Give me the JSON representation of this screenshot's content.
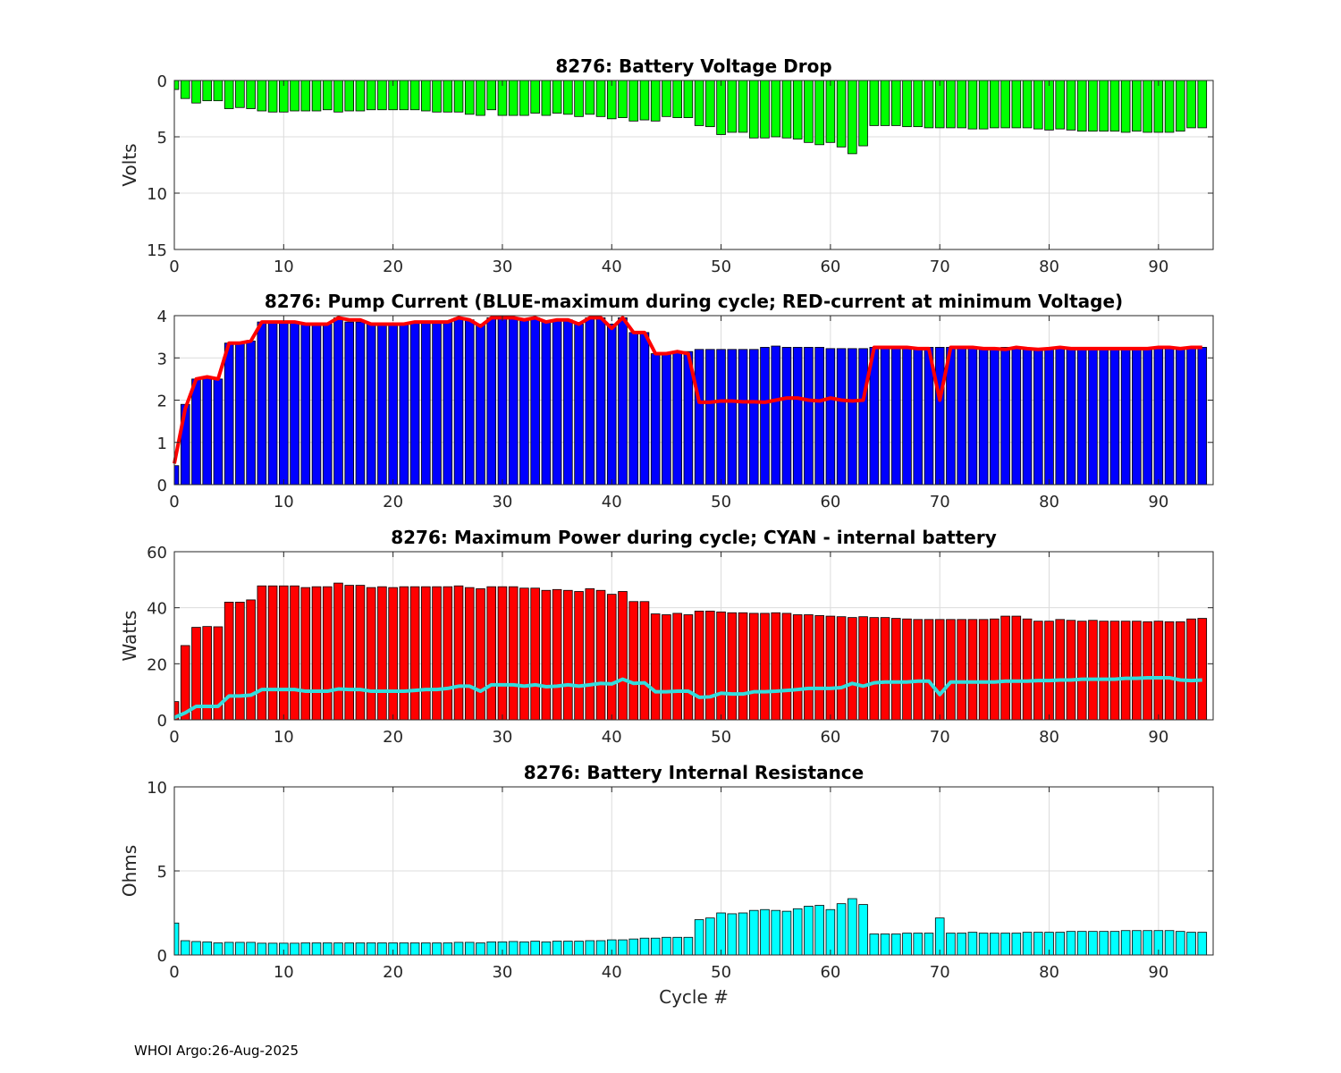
{
  "footer": "WHOI Argo:26-Aug-2025",
  "xlabel": "Cycle #",
  "colors": {
    "voltage_bar": "#00ff00",
    "current_bar": "#0000ff",
    "current_line": "#ff0000",
    "power_bar": "#ff0000",
    "power_line": "#33dddd",
    "resistance_bar": "#00ffff",
    "grid": "#dcdcdc"
  },
  "chart_data": [
    {
      "type": "bar",
      "title": "8276: Battery Voltage Drop",
      "ylabel": "Volts",
      "xlabel": "",
      "xlim": [
        0,
        95
      ],
      "ylim": [
        0,
        15
      ],
      "y_reversed": true,
      "grid": true,
      "xticks": [
        0,
        10,
        20,
        30,
        40,
        50,
        60,
        70,
        80,
        90
      ],
      "yticks": [
        0,
        5,
        10,
        15
      ],
      "x": [
        0,
        1,
        2,
        3,
        4,
        5,
        6,
        7,
        8,
        9,
        10,
        11,
        12,
        13,
        14,
        15,
        16,
        17,
        18,
        19,
        20,
        21,
        22,
        23,
        24,
        25,
        26,
        27,
        28,
        29,
        30,
        31,
        32,
        33,
        34,
        35,
        36,
        37,
        38,
        39,
        40,
        41,
        42,
        43,
        44,
        45,
        46,
        47,
        48,
        49,
        50,
        51,
        52,
        53,
        54,
        55,
        56,
        57,
        58,
        59,
        60,
        61,
        62,
        63,
        64,
        65,
        66,
        67,
        68,
        69,
        70,
        71,
        72,
        73,
        74,
        75,
        76,
        77,
        78,
        79,
        80,
        81,
        82,
        83,
        84,
        85,
        86,
        87,
        88,
        89,
        90,
        91,
        92,
        93,
        94
      ],
      "series": [
        {
          "values": [
            0.8,
            1.6,
            2.0,
            1.8,
            1.8,
            2.5,
            2.4,
            2.5,
            2.7,
            2.8,
            2.8,
            2.7,
            2.7,
            2.7,
            2.6,
            2.8,
            2.7,
            2.7,
            2.6,
            2.6,
            2.6,
            2.6,
            2.6,
            2.7,
            2.8,
            2.8,
            2.8,
            3.0,
            3.1,
            2.6,
            3.1,
            3.1,
            3.1,
            2.9,
            3.1,
            2.9,
            3.0,
            3.2,
            3.0,
            3.2,
            3.4,
            3.3,
            3.6,
            3.5,
            3.6,
            3.2,
            3.3,
            3.3,
            4.0,
            4.1,
            4.8,
            4.6,
            4.6,
            5.1,
            5.1,
            5.0,
            5.1,
            5.2,
            5.5,
            5.7,
            5.5,
            5.9,
            6.5,
            5.8,
            4.0,
            4.0,
            4.0,
            4.1,
            4.1,
            4.2,
            4.2,
            4.2,
            4.2,
            4.3,
            4.3,
            4.2,
            4.2,
            4.2,
            4.2,
            4.3,
            4.4,
            4.3,
            4.4,
            4.5,
            4.5,
            4.5,
            4.5,
            4.6,
            4.5,
            4.6,
            4.6,
            4.6,
            4.5,
            4.2,
            4.2
          ]
        }
      ]
    },
    {
      "type": "bar",
      "title": "8276: Pump Current (BLUE-maximum during cycle; RED-current at minimum Voltage)",
      "ylabel": "",
      "xlabel": "",
      "xlim": [
        0,
        95
      ],
      "ylim": [
        0,
        4
      ],
      "grid": true,
      "xticks": [
        0,
        10,
        20,
        30,
        40,
        50,
        60,
        70,
        80,
        90
      ],
      "yticks": [
        0,
        1,
        2,
        3,
        4
      ],
      "x": [
        0,
        1,
        2,
        3,
        4,
        5,
        6,
        7,
        8,
        9,
        10,
        11,
        12,
        13,
        14,
        15,
        16,
        17,
        18,
        19,
        20,
        21,
        22,
        23,
        24,
        25,
        26,
        27,
        28,
        29,
        30,
        31,
        32,
        33,
        34,
        35,
        36,
        37,
        38,
        39,
        40,
        41,
        42,
        43,
        44,
        45,
        46,
        47,
        48,
        49,
        50,
        51,
        52,
        53,
        54,
        55,
        56,
        57,
        58,
        59,
        60,
        61,
        62,
        63,
        64,
        65,
        66,
        67,
        68,
        69,
        70,
        71,
        72,
        73,
        74,
        75,
        76,
        77,
        78,
        79,
        80,
        81,
        82,
        83,
        84,
        85,
        86,
        87,
        88,
        89,
        90,
        91,
        92,
        93,
        94
      ],
      "series": [
        {
          "values": [
            0.45,
            1.9,
            2.5,
            2.55,
            2.5,
            3.35,
            3.35,
            3.4,
            3.85,
            3.85,
            3.85,
            3.85,
            3.8,
            3.8,
            3.8,
            3.95,
            3.85,
            3.85,
            3.8,
            3.8,
            3.8,
            3.8,
            3.85,
            3.85,
            3.85,
            3.85,
            3.95,
            3.9,
            3.8,
            3.95,
            3.95,
            3.95,
            3.9,
            3.95,
            3.85,
            3.9,
            3.9,
            3.8,
            3.95,
            3.95,
            3.8,
            3.95,
            3.6,
            3.6,
            3.1,
            3.1,
            3.15,
            3.15,
            3.2,
            3.2,
            3.2,
            3.2,
            3.2,
            3.2,
            3.25,
            3.28,
            3.25,
            3.25,
            3.25,
            3.25,
            3.22,
            3.22,
            3.22,
            3.22,
            3.25,
            3.25,
            3.25,
            3.25,
            3.25,
            3.25,
            3.25,
            3.25,
            3.25,
            3.22,
            3.22,
            3.22,
            3.25,
            3.22,
            3.2,
            3.2,
            3.22,
            3.22,
            3.22,
            3.22,
            3.22,
            3.22,
            3.22,
            3.22,
            3.22,
            3.22,
            3.25,
            3.22,
            3.22,
            3.25,
            3.25
          ]
        },
        {
          "values": [
            0.5,
            1.8,
            2.5,
            2.55,
            2.5,
            3.35,
            3.35,
            3.4,
            3.85,
            3.85,
            3.85,
            3.85,
            3.8,
            3.8,
            3.8,
            3.95,
            3.9,
            3.9,
            3.8,
            3.8,
            3.8,
            3.8,
            3.85,
            3.85,
            3.85,
            3.85,
            3.95,
            3.9,
            3.75,
            3.95,
            3.95,
            3.95,
            3.9,
            3.95,
            3.85,
            3.9,
            3.9,
            3.8,
            3.95,
            3.95,
            3.7,
            3.95,
            3.6,
            3.6,
            3.1,
            3.1,
            3.15,
            3.1,
            1.95,
            1.95,
            1.98,
            1.98,
            1.96,
            1.96,
            1.95,
            2.0,
            2.05,
            2.05,
            2.0,
            1.98,
            2.05,
            2.0,
            1.98,
            2.0,
            3.25,
            3.25,
            3.25,
            3.25,
            3.22,
            3.22,
            2.0,
            3.25,
            3.25,
            3.25,
            3.22,
            3.22,
            3.2,
            3.25,
            3.22,
            3.2,
            3.22,
            3.25,
            3.22,
            3.22,
            3.22,
            3.22,
            3.22,
            3.22,
            3.22,
            3.22,
            3.25,
            3.25,
            3.22,
            3.25,
            3.25
          ]
        }
      ]
    },
    {
      "type": "bar",
      "title": "8276: Maximum Power during cycle; CYAN - internal battery",
      "ylabel": "Watts",
      "xlabel": "",
      "xlim": [
        0,
        95
      ],
      "ylim": [
        0,
        60
      ],
      "grid": true,
      "xticks": [
        0,
        10,
        20,
        30,
        40,
        50,
        60,
        70,
        80,
        90
      ],
      "yticks": [
        0,
        20,
        40,
        60
      ],
      "x": [
        0,
        1,
        2,
        3,
        4,
        5,
        6,
        7,
        8,
        9,
        10,
        11,
        12,
        13,
        14,
        15,
        16,
        17,
        18,
        19,
        20,
        21,
        22,
        23,
        24,
        25,
        26,
        27,
        28,
        29,
        30,
        31,
        32,
        33,
        34,
        35,
        36,
        37,
        38,
        39,
        40,
        41,
        42,
        43,
        44,
        45,
        46,
        47,
        48,
        49,
        50,
        51,
        52,
        53,
        54,
        55,
        56,
        57,
        58,
        59,
        60,
        61,
        62,
        63,
        64,
        65,
        66,
        67,
        68,
        69,
        70,
        71,
        72,
        73,
        74,
        75,
        76,
        77,
        78,
        79,
        80,
        81,
        82,
        83,
        84,
        85,
        86,
        87,
        88,
        89,
        90,
        91,
        92,
        93,
        94
      ],
      "series": [
        {
          "values": [
            6.5,
            26.5,
            33,
            33.3,
            33.2,
            42,
            42,
            42.8,
            47.8,
            47.8,
            47.8,
            47.8,
            47.2,
            47.5,
            47.5,
            48.8,
            48,
            48,
            47.2,
            47.5,
            47.2,
            47.5,
            47.5,
            47.5,
            47.5,
            47.5,
            47.8,
            47.2,
            46.8,
            47.5,
            47.5,
            47.5,
            47,
            47,
            46.2,
            46.5,
            46.2,
            45.8,
            46.8,
            46.2,
            44.8,
            45.8,
            42.2,
            42.2,
            37.8,
            37.5,
            38,
            37.5,
            38.8,
            38.8,
            38.5,
            38.2,
            38.2,
            38,
            38,
            38.2,
            38,
            37.5,
            37.5,
            37.2,
            37,
            36.8,
            36.5,
            36.8,
            36.5,
            36.5,
            36.2,
            36,
            35.8,
            35.8,
            35.8,
            35.8,
            35.8,
            35.8,
            35.8,
            36,
            37,
            37,
            36,
            35.2,
            35.2,
            35.8,
            35.5,
            35.2,
            35.5,
            35.2,
            35.2,
            35.2,
            35.2,
            35,
            35.2,
            35,
            35,
            36,
            36.2
          ]
        },
        {
          "values": [
            0.8,
            2.5,
            4.8,
            4.8,
            4.8,
            8.5,
            8.5,
            8.8,
            10.8,
            10.8,
            10.8,
            10.8,
            10.2,
            10.2,
            10.2,
            11,
            10.8,
            10.8,
            10.2,
            10.2,
            10.2,
            10.2,
            10.5,
            10.8,
            10.8,
            11.2,
            12,
            12,
            10.2,
            12.5,
            12.5,
            12.5,
            12,
            12.5,
            11.8,
            12,
            12.5,
            12,
            12.5,
            13,
            12.8,
            14.5,
            13,
            13.2,
            10,
            10,
            10.2,
            10.2,
            8,
            8.2,
            9.5,
            9.2,
            9.2,
            10,
            10,
            10.2,
            10.5,
            10.8,
            11.2,
            11.2,
            11.2,
            11.5,
            13,
            12,
            13.2,
            13.5,
            13.5,
            13.5,
            13.8,
            13.8,
            9,
            13.5,
            13.5,
            13.5,
            13.5,
            13.5,
            13.8,
            13.8,
            13.8,
            14,
            14,
            14.2,
            14.2,
            14.5,
            14.5,
            14.5,
            14.5,
            14.8,
            14.8,
            15,
            15,
            15,
            14.2,
            14,
            14.2
          ]
        }
      ]
    },
    {
      "type": "bar",
      "title": "8276: Battery Internal Resistance",
      "ylabel": "Ohms",
      "xlabel": "Cycle #",
      "xlim": [
        0,
        95
      ],
      "ylim": [
        0,
        10
      ],
      "grid": true,
      "xticks": [
        0,
        10,
        20,
        30,
        40,
        50,
        60,
        70,
        80,
        90
      ],
      "yticks": [
        0,
        5,
        10
      ],
      "x": [
        0,
        1,
        2,
        3,
        4,
        5,
        6,
        7,
        8,
        9,
        10,
        11,
        12,
        13,
        14,
        15,
        16,
        17,
        18,
        19,
        20,
        21,
        22,
        23,
        24,
        25,
        26,
        27,
        28,
        29,
        30,
        31,
        32,
        33,
        34,
        35,
        36,
        37,
        38,
        39,
        40,
        41,
        42,
        43,
        44,
        45,
        46,
        47,
        48,
        49,
        50,
        51,
        52,
        53,
        54,
        55,
        56,
        57,
        58,
        59,
        60,
        61,
        62,
        63,
        64,
        65,
        66,
        67,
        68,
        69,
        70,
        71,
        72,
        73,
        74,
        75,
        76,
        77,
        78,
        79,
        80,
        81,
        82,
        83,
        84,
        85,
        86,
        87,
        88,
        89,
        90,
        91,
        92,
        93,
        94
      ],
      "series": [
        {
          "values": [
            1.9,
            0.85,
            0.8,
            0.78,
            0.72,
            0.75,
            0.75,
            0.75,
            0.7,
            0.7,
            0.7,
            0.7,
            0.72,
            0.72,
            0.72,
            0.72,
            0.72,
            0.72,
            0.72,
            0.72,
            0.72,
            0.72,
            0.72,
            0.72,
            0.72,
            0.72,
            0.75,
            0.75,
            0.72,
            0.78,
            0.78,
            0.8,
            0.78,
            0.82,
            0.78,
            0.82,
            0.82,
            0.82,
            0.85,
            0.85,
            0.9,
            0.9,
            0.95,
            1.0,
            1.0,
            1.05,
            1.05,
            1.05,
            2.1,
            2.2,
            2.5,
            2.45,
            2.5,
            2.65,
            2.7,
            2.65,
            2.6,
            2.75,
            2.9,
            2.95,
            2.7,
            3.05,
            3.35,
            3.0,
            1.25,
            1.25,
            1.25,
            1.3,
            1.3,
            1.3,
            2.2,
            1.3,
            1.3,
            1.35,
            1.3,
            1.3,
            1.3,
            1.3,
            1.35,
            1.35,
            1.35,
            1.35,
            1.4,
            1.4,
            1.4,
            1.4,
            1.4,
            1.45,
            1.45,
            1.45,
            1.45,
            1.45,
            1.4,
            1.35,
            1.35
          ]
        }
      ]
    }
  ]
}
